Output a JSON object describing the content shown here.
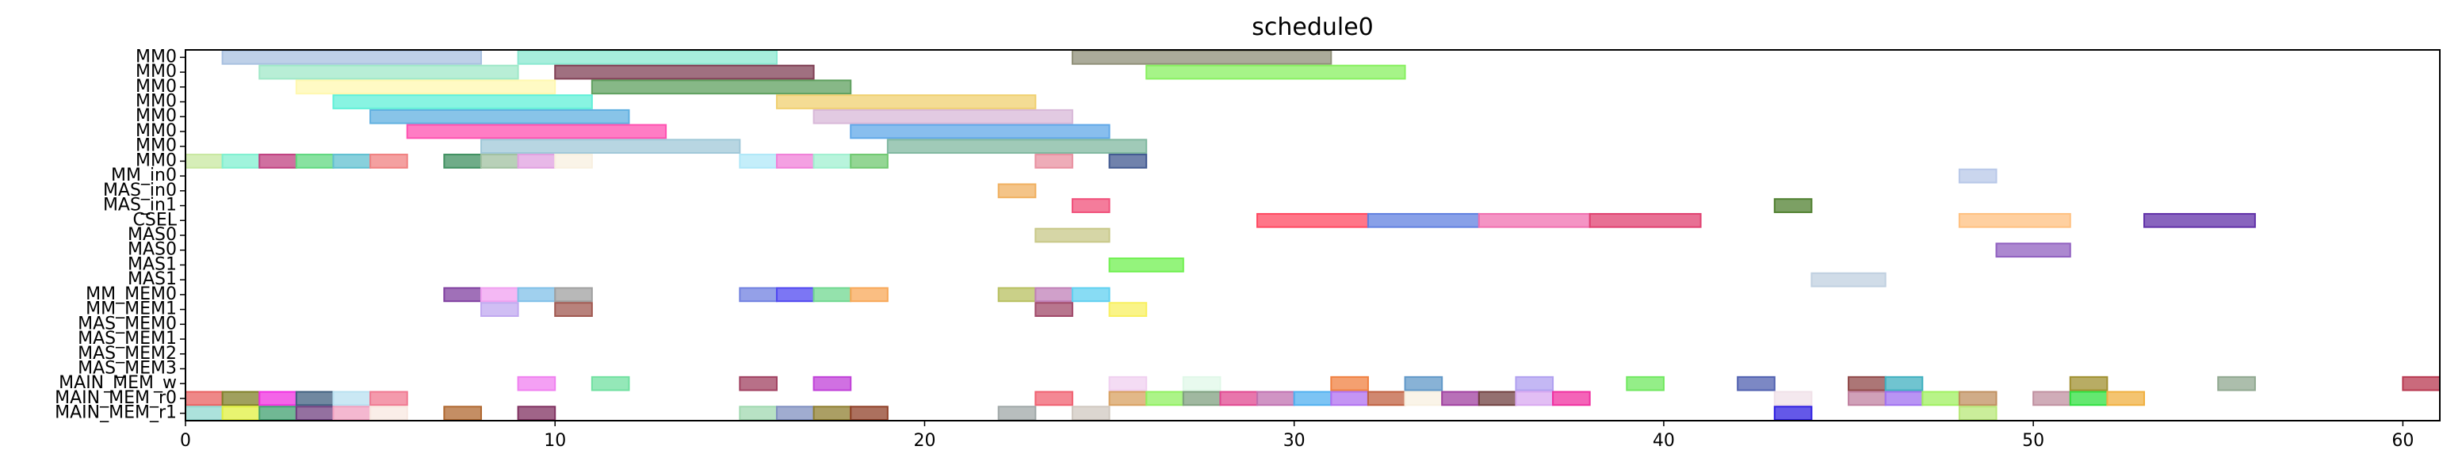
{
  "chart_data": {
    "type": "gantt",
    "title": "schedule0",
    "xlim": [
      0,
      61
    ],
    "xticks": [
      0,
      10,
      20,
      30,
      40,
      50,
      60
    ],
    "rows": [
      "MM0",
      "MM0",
      "MM0",
      "MM0",
      "MM0",
      "MM0",
      "MM0",
      "MM0",
      "MM_in0",
      "MAS_in0",
      "MAS_in1",
      "CSEL",
      "MAS0",
      "MAS0",
      "MAS1",
      "MAS1",
      "MM_MEM0",
      "MM_MEM1",
      "MAS_MEM0",
      "MAS_MEM1",
      "MAS_MEM2",
      "MAS_MEM3",
      "MAIN_MEM_w",
      "MAIN_MEM_r0",
      "MAIN_MEM_r1"
    ],
    "tasks": [
      {
        "row": 0,
        "start": 1,
        "end": 8,
        "color": "#a8c0e0"
      },
      {
        "row": 0,
        "start": 9,
        "end": 16,
        "color": "#8ae8d0"
      },
      {
        "row": 0,
        "start": 24,
        "end": 31,
        "color": "#8f8f78"
      },
      {
        "row": 1,
        "start": 2,
        "end": 9,
        "color": "#a0e8c8"
      },
      {
        "row": 1,
        "start": 10,
        "end": 17,
        "color": "#804055"
      },
      {
        "row": 1,
        "start": 26,
        "end": 33,
        "color": "#88f060"
      },
      {
        "row": 2,
        "start": 3,
        "end": 10,
        "color": "#fff8b0"
      },
      {
        "row": 2,
        "start": 11,
        "end": 18,
        "color": "#5fa05f"
      },
      {
        "row": 3,
        "start": 4,
        "end": 11,
        "color": "#60f0d8"
      },
      {
        "row": 3,
        "start": 16,
        "end": 23,
        "color": "#f0d070"
      },
      {
        "row": 4,
        "start": 5,
        "end": 12,
        "color": "#60b0e0"
      },
      {
        "row": 4,
        "start": 17,
        "end": 24,
        "color": "#d8b8d8"
      },
      {
        "row": 5,
        "start": 6,
        "end": 13,
        "color": "#ff50b0"
      },
      {
        "row": 5,
        "start": 18,
        "end": 25,
        "color": "#60a8e8"
      },
      {
        "row": 6,
        "start": 8,
        "end": 15,
        "color": "#a0c8d8"
      },
      {
        "row": 6,
        "start": 19,
        "end": 26,
        "color": "#80b8a0"
      },
      {
        "row": 7,
        "start": 0,
        "end": 1,
        "color": "#c8e8a0"
      },
      {
        "row": 7,
        "start": 1,
        "end": 2,
        "color": "#80f0d0"
      },
      {
        "row": 7,
        "start": 2,
        "end": 3,
        "color": "#c04080"
      },
      {
        "row": 7,
        "start": 3,
        "end": 4,
        "color": "#60d880"
      },
      {
        "row": 7,
        "start": 4,
        "end": 5,
        "color": "#60c0d0"
      },
      {
        "row": 7,
        "start": 5,
        "end": 6,
        "color": "#f08080"
      },
      {
        "row": 7,
        "start": 7,
        "end": 8,
        "color": "#3f9060"
      },
      {
        "row": 7,
        "start": 8,
        "end": 9,
        "color": "#a0c0a0"
      },
      {
        "row": 7,
        "start": 9,
        "end": 10,
        "color": "#e0a0e0"
      },
      {
        "row": 7,
        "start": 10,
        "end": 11,
        "color": "#f8f0e0"
      },
      {
        "row": 7,
        "start": 15,
        "end": 16,
        "color": "#b0e8f8"
      },
      {
        "row": 7,
        "start": 16,
        "end": 17,
        "color": "#f080d8"
      },
      {
        "row": 7,
        "start": 17,
        "end": 18,
        "color": "#a0f0d0"
      },
      {
        "row": 7,
        "start": 18,
        "end": 19,
        "color": "#70c870"
      },
      {
        "row": 7,
        "start": 23,
        "end": 24,
        "color": "#e890a0"
      },
      {
        "row": 7,
        "start": 25,
        "end": 26,
        "color": "#405890"
      },
      {
        "row": 8,
        "start": 48,
        "end": 49,
        "color": "#b8c8e8"
      },
      {
        "row": 9,
        "start": 22,
        "end": 23,
        "color": "#f0b060"
      },
      {
        "row": 10,
        "start": 24,
        "end": 25,
        "color": "#f0507a"
      },
      {
        "row": 10,
        "start": 43,
        "end": 44,
        "color": "#508030"
      },
      {
        "row": 11,
        "start": 29,
        "end": 32,
        "color": "#ff4860"
      },
      {
        "row": 11,
        "start": 32,
        "end": 35,
        "color": "#6080e0"
      },
      {
        "row": 11,
        "start": 35,
        "end": 38,
        "color": "#f070b0"
      },
      {
        "row": 11,
        "start": 38,
        "end": 41,
        "color": "#e04070"
      },
      {
        "row": 11,
        "start": 48,
        "end": 51,
        "color": "#ffc080"
      },
      {
        "row": 11,
        "start": 53,
        "end": 56,
        "color": "#6030a8"
      },
      {
        "row": 12,
        "start": 23,
        "end": 25,
        "color": "#c8c888"
      },
      {
        "row": 13,
        "start": 49,
        "end": 51,
        "color": "#9060c0"
      },
      {
        "row": 14,
        "start": 25,
        "end": 27,
        "color": "#70f050"
      },
      {
        "row": 15,
        "start": 44,
        "end": 46,
        "color": "#c0d0e0"
      },
      {
        "row": 16,
        "start": 7,
        "end": 8,
        "color": "#8040a0"
      },
      {
        "row": 16,
        "start": 8,
        "end": 9,
        "color": "#f0a0f0"
      },
      {
        "row": 16,
        "start": 9,
        "end": 10,
        "color": "#80c0e8"
      },
      {
        "row": 16,
        "start": 10,
        "end": 11,
        "color": "#a0a0a0"
      },
      {
        "row": 16,
        "start": 15,
        "end": 16,
        "color": "#7080e0"
      },
      {
        "row": 16,
        "start": 16,
        "end": 17,
        "color": "#5048f0"
      },
      {
        "row": 16,
        "start": 17,
        "end": 18,
        "color": "#70d890"
      },
      {
        "row": 16,
        "start": 18,
        "end": 19,
        "color": "#f8a858"
      },
      {
        "row": 16,
        "start": 22,
        "end": 23,
        "color": "#b8c060"
      },
      {
        "row": 16,
        "start": 23,
        "end": 24,
        "color": "#c080b8"
      },
      {
        "row": 16,
        "start": 24,
        "end": 25,
        "color": "#60d0f0"
      },
      {
        "row": 17,
        "start": 8,
        "end": 9,
        "color": "#c0a8f0"
      },
      {
        "row": 17,
        "start": 10,
        "end": 11,
        "color": "#a05850"
      },
      {
        "row": 17,
        "start": 23,
        "end": 24,
        "color": "#a04868"
      },
      {
        "row": 17,
        "start": 25,
        "end": 26,
        "color": "#f8f060"
      },
      {
        "row": 22,
        "start": 9,
        "end": 10,
        "color": "#f080f0"
      },
      {
        "row": 22,
        "start": 11,
        "end": 12,
        "color": "#70e0a0"
      },
      {
        "row": 22,
        "start": 15,
        "end": 16,
        "color": "#a04060"
      },
      {
        "row": 22,
        "start": 17,
        "end": 18,
        "color": "#c040d8"
      },
      {
        "row": 22,
        "start": 25,
        "end": 26,
        "color": "#f0d0f0"
      },
      {
        "row": 22,
        "start": 27,
        "end": 28,
        "color": "#e0f8e8"
      },
      {
        "row": 22,
        "start": 31,
        "end": 32,
        "color": "#f08040"
      },
      {
        "row": 22,
        "start": 33,
        "end": 34,
        "color": "#6098c8"
      },
      {
        "row": 22,
        "start": 36,
        "end": 37,
        "color": "#b0a0f0"
      },
      {
        "row": 22,
        "start": 39,
        "end": 40,
        "color": "#70e860"
      },
      {
        "row": 22,
        "start": 42,
        "end": 43,
        "color": "#5060b0"
      },
      {
        "row": 22,
        "start": 45,
        "end": 46,
        "color": "#904848"
      },
      {
        "row": 22,
        "start": 46,
        "end": 47,
        "color": "#40b0c0"
      },
      {
        "row": 22,
        "start": 51,
        "end": 52,
        "color": "#a09030"
      },
      {
        "row": 22,
        "start": 55,
        "end": 56,
        "color": "#90a890"
      },
      {
        "row": 22,
        "start": 60,
        "end": 61,
        "color": "#b83850"
      },
      {
        "row": 23,
        "start": 0,
        "end": 1,
        "color": "#e86060"
      },
      {
        "row": 23,
        "start": 1,
        "end": 2,
        "color": "#808028"
      },
      {
        "row": 23,
        "start": 2,
        "end": 3,
        "color": "#f030e0"
      },
      {
        "row": 23,
        "start": 3,
        "end": 4,
        "color": "#406080"
      },
      {
        "row": 23,
        "start": 4,
        "end": 5,
        "color": "#b8e0f0"
      },
      {
        "row": 23,
        "start": 5,
        "end": 6,
        "color": "#f07890"
      },
      {
        "row": 23,
        "start": 23,
        "end": 24,
        "color": "#f06070"
      },
      {
        "row": 23,
        "start": 25,
        "end": 26,
        "color": "#d8a060"
      },
      {
        "row": 23,
        "start": 26,
        "end": 27,
        "color": "#90f060"
      },
      {
        "row": 23,
        "start": 27,
        "end": 28,
        "color": "#80a080"
      },
      {
        "row": 23,
        "start": 28,
        "end": 29,
        "color": "#e04890"
      },
      {
        "row": 23,
        "start": 29,
        "end": 30,
        "color": "#c070b0"
      },
      {
        "row": 23,
        "start": 30,
        "end": 31,
        "color": "#50b0f0"
      },
      {
        "row": 23,
        "start": 31,
        "end": 32,
        "color": "#b070f0"
      },
      {
        "row": 23,
        "start": 32,
        "end": 33,
        "color": "#c06040"
      },
      {
        "row": 23,
        "start": 33,
        "end": 34,
        "color": "#f8f0e0"
      },
      {
        "row": 23,
        "start": 34,
        "end": 35,
        "color": "#a040a0"
      },
      {
        "row": 23,
        "start": 35,
        "end": 36,
        "color": "#704040"
      },
      {
        "row": 23,
        "start": 36,
        "end": 37,
        "color": "#d8a8f0"
      },
      {
        "row": 23,
        "start": 37,
        "end": 38,
        "color": "#f030a0"
      },
      {
        "row": 23,
        "start": 43,
        "end": 44,
        "color": "#f0e0e8"
      },
      {
        "row": 23,
        "start": 45,
        "end": 46,
        "color": "#c080a0"
      },
      {
        "row": 23,
        "start": 46,
        "end": 47,
        "color": "#a070f0"
      },
      {
        "row": 23,
        "start": 47,
        "end": 48,
        "color": "#a0f060"
      },
      {
        "row": 23,
        "start": 48,
        "end": 49,
        "color": "#c09060"
      },
      {
        "row": 23,
        "start": 50,
        "end": 51,
        "color": "#c090a0"
      },
      {
        "row": 23,
        "start": 51,
        "end": 52,
        "color": "#30e040"
      },
      {
        "row": 23,
        "start": 52,
        "end": 53,
        "color": "#f0b040"
      },
      {
        "row": 24,
        "start": 0,
        "end": 1,
        "color": "#90d8d0"
      },
      {
        "row": 24,
        "start": 1,
        "end": 2,
        "color": "#e0f040"
      },
      {
        "row": 24,
        "start": 2,
        "end": 3,
        "color": "#40a070"
      },
      {
        "row": 24,
        "start": 3,
        "end": 4,
        "color": "#704080"
      },
      {
        "row": 24,
        "start": 4,
        "end": 5,
        "color": "#f0a0c0"
      },
      {
        "row": 24,
        "start": 5,
        "end": 6,
        "color": "#f8e8e0"
      },
      {
        "row": 24,
        "start": 7,
        "end": 8,
        "color": "#b06830"
      },
      {
        "row": 24,
        "start": 9,
        "end": 10,
        "color": "#803060"
      },
      {
        "row": 24,
        "start": 15,
        "end": 16,
        "color": "#a0d8b0"
      },
      {
        "row": 24,
        "start": 16,
        "end": 17,
        "color": "#8090c0"
      },
      {
        "row": 24,
        "start": 17,
        "end": 18,
        "color": "#8f7f30"
      },
      {
        "row": 24,
        "start": 18,
        "end": 19,
        "color": "#904028"
      },
      {
        "row": 24,
        "start": 22,
        "end": 23,
        "color": "#a0a8a8"
      },
      {
        "row": 24,
        "start": 24,
        "end": 25,
        "color": "#d0c8c0"
      },
      {
        "row": 24,
        "start": 43,
        "end": 44,
        "color": "#3020e0"
      },
      {
        "row": 24,
        "start": 48,
        "end": 49,
        "color": "#b8e878"
      }
    ]
  }
}
